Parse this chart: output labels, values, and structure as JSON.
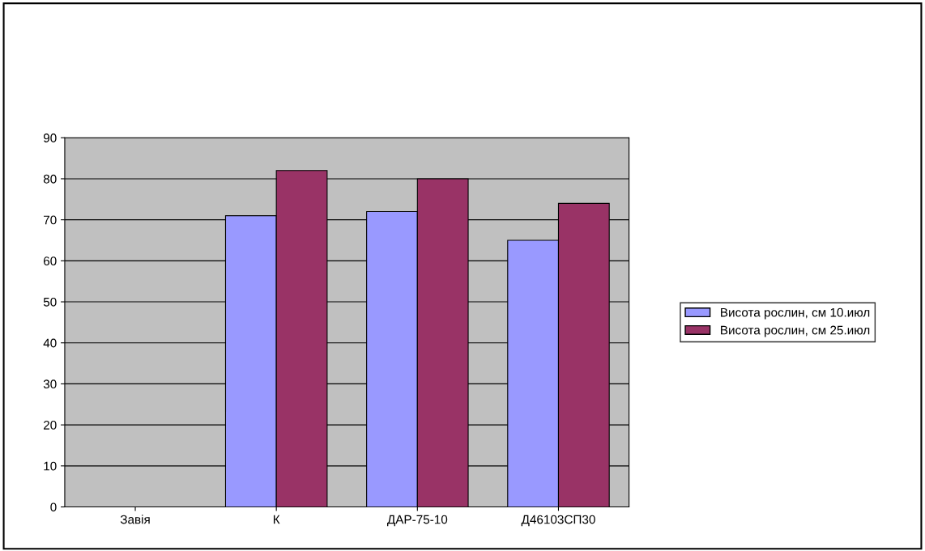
{
  "chart_data": {
    "type": "bar",
    "categories": [
      "Завія",
      "К",
      "ДАР-75-10",
      "Д46103СП30"
    ],
    "series": [
      {
        "name": "Висота рослин, см 10.июл",
        "color": "#9999ff",
        "values": [
          null,
          71,
          72,
          65
        ]
      },
      {
        "name": "Висота рослин, см 25.июл",
        "color": "#993366",
        "values": [
          null,
          82,
          80,
          74
        ]
      }
    ],
    "ylim": [
      0,
      90
    ],
    "yticks": [
      0,
      10,
      20,
      30,
      40,
      50,
      60,
      70,
      80,
      90
    ],
    "grid": "y",
    "legend": "right"
  }
}
